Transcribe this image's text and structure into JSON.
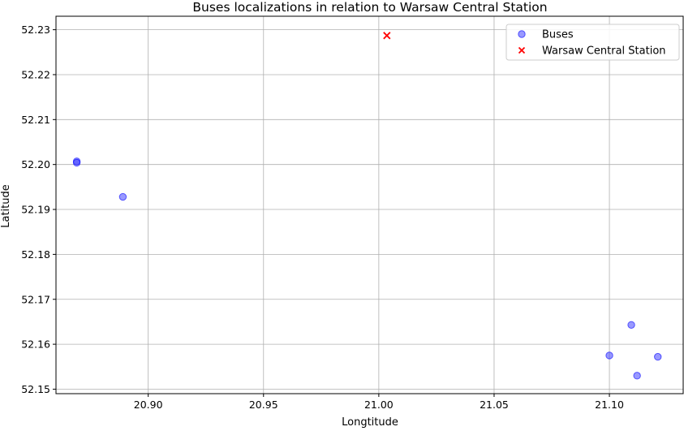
{
  "chart_data": {
    "type": "scatter",
    "title": "Buses localizations in relation to Warsaw Central Station",
    "xlabel": "Longtitude",
    "ylabel": "Latitude",
    "xlim": [
      20.86,
      21.132
    ],
    "ylim": [
      52.149,
      52.233
    ],
    "xticks": [
      "20.90",
      "20.95",
      "21.00",
      "21.05",
      "21.10"
    ],
    "yticks": [
      "52.15",
      "52.16",
      "52.17",
      "52.18",
      "52.19",
      "52.20",
      "52.21",
      "52.22",
      "52.23"
    ],
    "grid": true,
    "legend_position": "top-right",
    "series": [
      {
        "name": "Buses",
        "marker": "circle",
        "color": "#3333ff",
        "points": [
          {
            "x": 20.869,
            "y": 52.2007
          },
          {
            "x": 20.869,
            "y": 52.2004
          },
          {
            "x": 20.889,
            "y": 52.1928
          },
          {
            "x": 21.1095,
            "y": 52.1643
          },
          {
            "x": 21.1,
            "y": 52.1575
          },
          {
            "x": 21.121,
            "y": 52.1572
          },
          {
            "x": 21.112,
            "y": 52.153
          }
        ]
      },
      {
        "name": "Warsaw Central Station",
        "marker": "x",
        "color": "#ff0000",
        "points": [
          {
            "x": 21.0035,
            "y": 52.2287
          }
        ]
      }
    ]
  }
}
